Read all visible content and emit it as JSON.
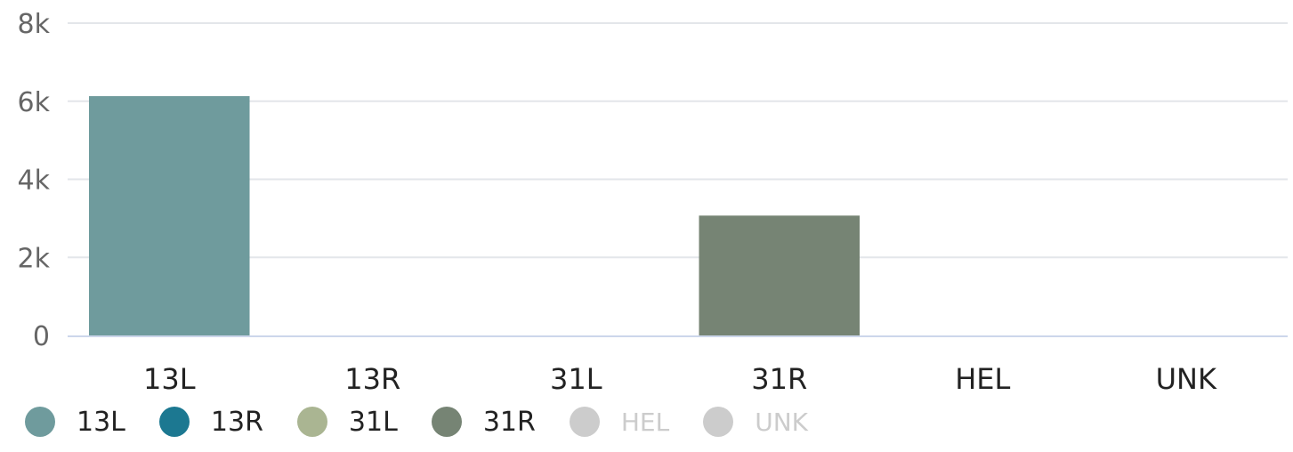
{
  "chart_data": {
    "type": "bar",
    "categories": [
      "13L",
      "13R",
      "31L",
      "31R",
      "HEL",
      "UNK"
    ],
    "values": [
      6130,
      0,
      0,
      3070,
      0,
      0
    ],
    "ylim": [
      0,
      8000
    ],
    "yticks": [
      {
        "value": 0,
        "label": "0"
      },
      {
        "value": 2000,
        "label": "2k"
      },
      {
        "value": 4000,
        "label": "4k"
      },
      {
        "value": 6000,
        "label": "6k"
      },
      {
        "value": 8000,
        "label": "8k"
      }
    ],
    "grid": true,
    "legend_position": "bottom-left",
    "title": "",
    "xlabel": "",
    "ylabel": ""
  },
  "legend": [
    {
      "label": "13L",
      "color": "#6f9b9d",
      "visible": true
    },
    {
      "label": "13R",
      "color": "#1c7891",
      "visible": true
    },
    {
      "label": "31L",
      "color": "#aab592",
      "visible": true
    },
    {
      "label": "31R",
      "color": "#768474",
      "visible": true
    },
    {
      "label": "HEL",
      "color": "#cccccc",
      "visible": false
    },
    {
      "label": "UNK",
      "color": "#cccccc",
      "visible": false
    }
  ],
  "colors": {
    "grid": "#e3e6ea",
    "axis": "#ccd6eb"
  }
}
